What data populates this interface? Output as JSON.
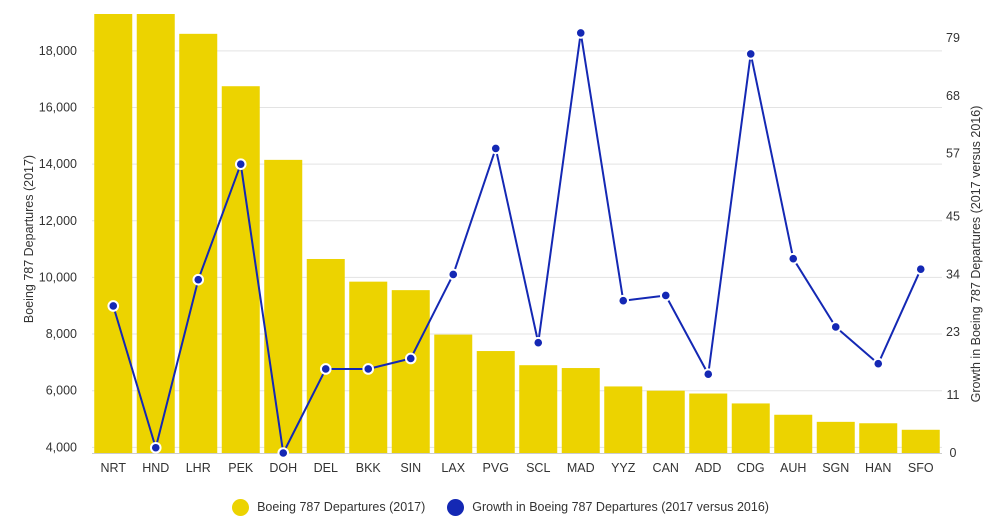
{
  "chart_data": {
    "type": "bar+line",
    "categories": [
      "NRT",
      "HND",
      "LHR",
      "PEK",
      "DOH",
      "DEL",
      "BKK",
      "SIN",
      "LAX",
      "PVG",
      "SCL",
      "MAD",
      "YYZ",
      "CAN",
      "ADD",
      "CDG",
      "AUH",
      "SGN",
      "HAN",
      "SFO"
    ],
    "series": [
      {
        "name": "Boeing 787 Departures (2017)",
        "type": "bar",
        "axis": "left",
        "color": "#ecd300",
        "values": [
          19300,
          19300,
          18600,
          16750,
          14150,
          10650,
          9850,
          9550,
          7980,
          7400,
          6900,
          6800,
          6150,
          6000,
          5900,
          5550,
          5150,
          4900,
          4850,
          4620
        ]
      },
      {
        "name": "Growth in Boeing 787 Departures (2017 versus 2016)",
        "type": "line",
        "axis": "right",
        "color": "#1428b4",
        "values": [
          28,
          1,
          33,
          55,
          0,
          16,
          16,
          18,
          34,
          58,
          21,
          80,
          29,
          30,
          15,
          76,
          37,
          24,
          17,
          35
        ]
      }
    ],
    "y_left": {
      "title": "Boeing 787 Departures (2017)",
      "ylim": [
        3800,
        19300
      ],
      "ticks": [
        4000,
        6000,
        8000,
        10000,
        12000,
        14000,
        16000,
        18000
      ],
      "tick_labels": [
        "4,000",
        "6,000",
        "8,000",
        "10,000",
        "12,000",
        "14,000",
        "16,000",
        "18,000"
      ]
    },
    "y_right": {
      "title": "Growth in Boeing 787 Departures (2017 versus 2016)",
      "ylim": [
        0,
        83.6
      ],
      "ticks": [
        0,
        11,
        23,
        34,
        45,
        57,
        68,
        79
      ],
      "tick_labels": [
        "0",
        "11",
        "23",
        "34",
        "45",
        "57",
        "68",
        "79"
      ]
    },
    "grid": true,
    "legend_position": "bottom-center"
  }
}
